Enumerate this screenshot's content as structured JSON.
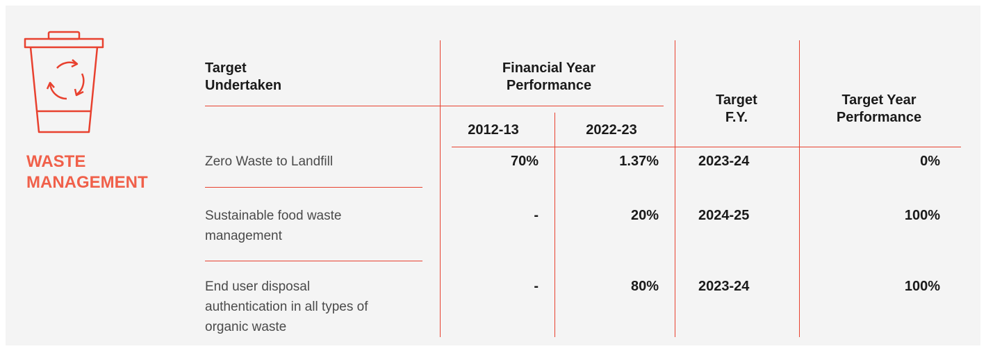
{
  "section": {
    "title": "WASTE MANAGEMENT"
  },
  "table": {
    "headers": {
      "target": [
        "Target",
        "Undertaken"
      ],
      "financial_year": [
        "Financial Year",
        "Performance"
      ],
      "years": [
        "2012-13",
        "2022-23"
      ],
      "target_fy": [
        "Target",
        "F.Y."
      ],
      "target_year_performance": [
        "Target Year",
        "Performance"
      ]
    },
    "rows": [
      {
        "target": [
          "Zero Waste to Landfill"
        ],
        "y1": "70%",
        "y2": "1.37%",
        "target_fy": "2023-24",
        "performance": "0%"
      },
      {
        "target": [
          "Sustainable food waste",
          "management"
        ],
        "y1": "-",
        "y2": "20%",
        "target_fy": "2024-25",
        "performance": "100%"
      },
      {
        "target": [
          "End user disposal",
          "authentication in all types of",
          "organic waste"
        ],
        "y1": "-",
        "y2": "80%",
        "target_fy": "2023-24",
        "performance": "100%"
      }
    ]
  }
}
